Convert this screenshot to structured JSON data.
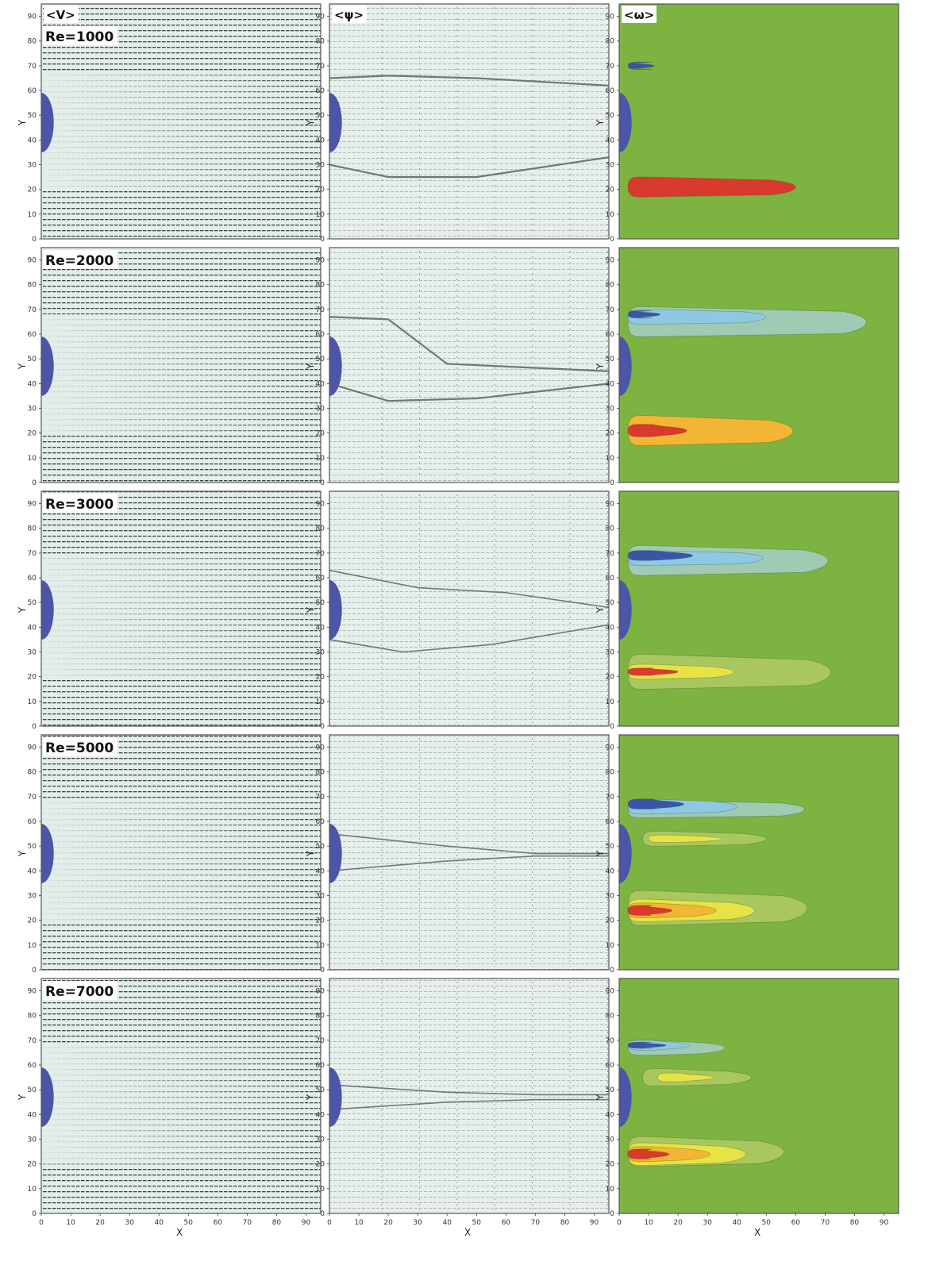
{
  "column_labels": [
    "<V>",
    "<ψ>",
    "<ω>"
  ],
  "row_labels": [
    "Re=1000",
    "Re=2000",
    "Re=3000",
    "Re=5000",
    "Re=7000"
  ],
  "x_axis_label": "X",
  "y_axis_label": "Y",
  "y_ticks": [
    "0",
    "10",
    "20",
    "30",
    "40",
    "50",
    "60",
    "70",
    "80",
    "90"
  ],
  "x_ticks": [
    "0",
    "10",
    "20",
    "30",
    "40",
    "50",
    "60",
    "70",
    "80",
    "90"
  ],
  "colors": {
    "vector_bg": "#e3eeeb",
    "vector_dark": "#3a4440",
    "stream_bg": "#e6efec",
    "stream_line": "#6f7875",
    "vorticity_bg": "#7db340",
    "cylinder": "#4c55a6",
    "vort_red": "#d93a2c",
    "vort_orange": "#f3b634",
    "vort_yellow": "#e7e346",
    "vort_lightgreen": "#a9c75f",
    "vort_darkblue": "#3a55a8",
    "vort_lightblue": "#8ec9e3",
    "vort_paleblue": "#9fcab3"
  },
  "chart_data": {
    "type": "other",
    "columns": [
      "<V>",
      "<ψ>",
      "<ω>"
    ],
    "rows": [
      "Re=1000",
      "Re=2000",
      "Re=3000",
      "Re=5000",
      "Re=7000"
    ],
    "x_range": [
      0,
      95
    ],
    "y_range": [
      0,
      95
    ],
    "xlabel": "X",
    "ylabel": "Y"
  }
}
